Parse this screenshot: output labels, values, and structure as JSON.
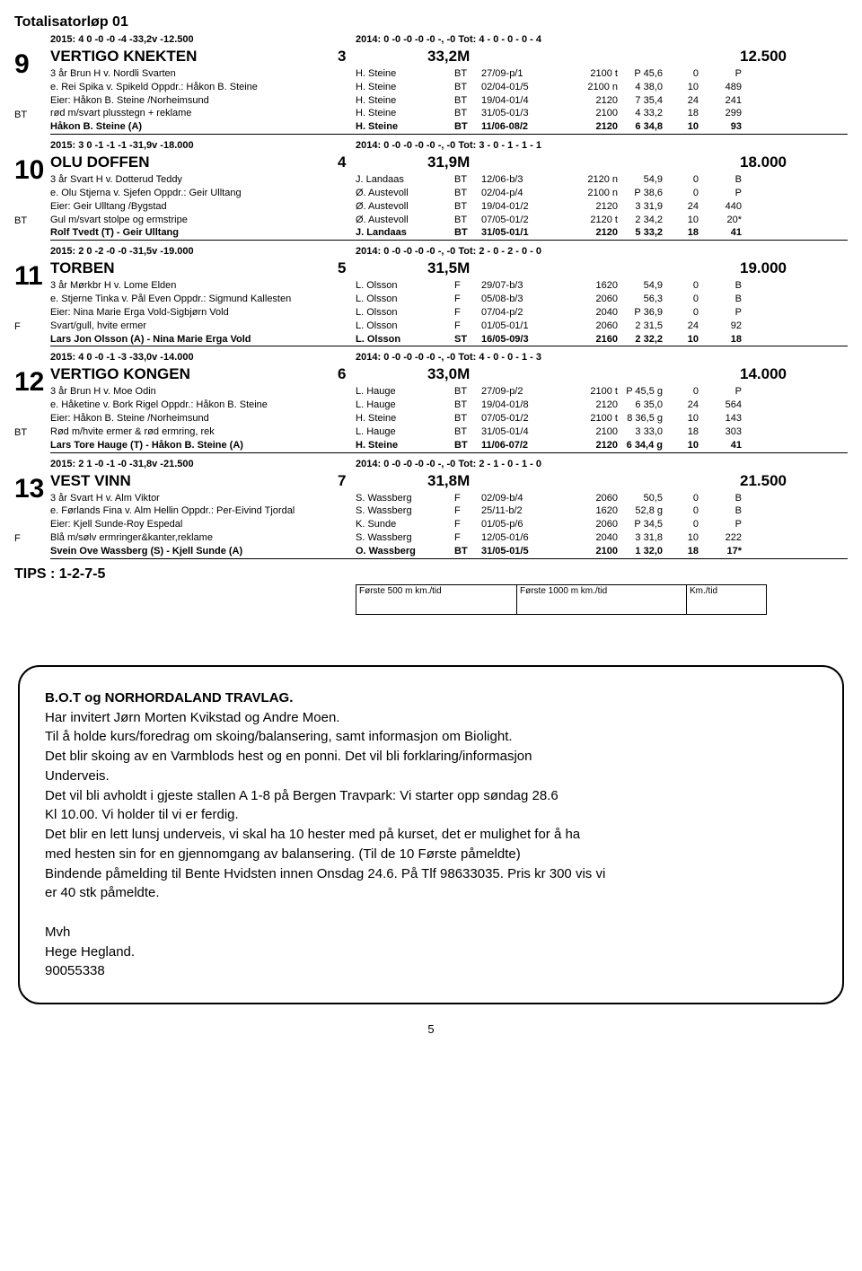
{
  "title": "Totalisatorløp 01",
  "horses": [
    {
      "bigNum": "9",
      "btBottom": "BT",
      "yearLeft": "2015:   4    0   -0   -0   -4  -33,2v  -12.500",
      "yearRight": "2014:   0   -0   -0   -0   -0          -,          -0     Tot: 4 - 0 - 0 - 0 - 4",
      "name": "VERTIGO KNEKTEN",
      "num": "3",
      "dist": "33,2M",
      "odds": "12.500",
      "lines": [
        {
          "desc": "3 år Brun H v. Nordli Svarten",
          "driver": "H. Steine",
          "code": "BT",
          "date": "27/09-p/1",
          "dist": "2100 t",
          "v1": "P 45,6",
          "v2": "0",
          "v3": "P"
        },
        {
          "desc": "e. Rei Spika v. Spikeld  Oppdr.: Håkon B. Steine",
          "driver": "H. Steine",
          "code": "BT",
          "date": "02/04-01/5",
          "dist": "2100 n",
          "v1": "4 38,0",
          "v2": "10",
          "v3": "489"
        },
        {
          "desc": "Eier: Håkon B. Steine /Norheimsund",
          "driver": "H. Steine",
          "code": "BT",
          "date": "19/04-01/4",
          "dist": "2120",
          "v1": "7 35,4",
          "v2": "24",
          "v3": "241"
        },
        {
          "desc": "rød m/svart plusstegn + reklame",
          "driver": "H. Steine",
          "code": "BT",
          "date": "31/05-01/3",
          "dist": "2100",
          "v1": "4 33,2",
          "v2": "18",
          "v3": "299"
        },
        {
          "desc": "Håkon B. Steine (A)",
          "driver": "H. Steine",
          "code": "BT",
          "date": "11/06-08/2",
          "dist": "2120",
          "v1": "6 34,8",
          "v2": "10",
          "v3": "93",
          "bold": true,
          "underline": true
        }
      ]
    },
    {
      "bigNum": "10",
      "btBottom": "BT",
      "yearLeft": "2015:   3    0   -1   -1   -1  -31,9v  -18.000",
      "yearRight": "2014:   0   -0   -0   -0   -0          -,          -0     Tot: 3 - 0 - 1 - 1 - 1",
      "name": "OLU DOFFEN",
      "num": "4",
      "dist": "31,9M",
      "odds": "18.000",
      "lines": [
        {
          "desc": "3 år Svart H v. Dotterud Teddy",
          "driver": "J. Landaas",
          "code": "BT",
          "date": "12/06-b/3",
          "dist": "2120 n",
          "v1": "54,9",
          "v2": "0",
          "v3": "B"
        },
        {
          "desc": "e. Olu Stjerna v. Sjefen  Oppdr.: Geir Ulltang",
          "driver": "Ø. Austevoll",
          "code": "BT",
          "date": "02/04-p/4",
          "dist": "2100 n",
          "v1": "P 38,6",
          "v2": "0",
          "v3": "P"
        },
        {
          "desc": "Eier: Geir Ulltang /Bygstad",
          "driver": "Ø. Austevoll",
          "code": "BT",
          "date": "19/04-01/2",
          "dist": "2120",
          "v1": "3 31,9",
          "v2": "24",
          "v3": "440"
        },
        {
          "desc": "Gul m/svart stolpe og ermstripe",
          "driver": "Ø. Austevoll",
          "code": "BT",
          "date": "07/05-01/2",
          "dist": "2120 t",
          "v1": "2 34,2",
          "v2": "10",
          "v3": "20*"
        },
        {
          "desc": "Rolf Tvedt (T) - Geir Ulltang",
          "driver": "J. Landaas",
          "code": "BT",
          "date": "31/05-01/1",
          "dist": "2120",
          "v1": "5 33,2",
          "v2": "18",
          "v3": "41",
          "bold": true,
          "underline": true
        }
      ]
    },
    {
      "bigNum": "11",
      "btBottom": "F",
      "yearLeft": "2015:   2    0   -2   -0   -0  -31,5v  -19.000",
      "yearRight": "2014:   0   -0   -0   -0   -0          -,          -0     Tot: 2 - 0 - 2 - 0 - 0",
      "name": "TORBEN",
      "num": "5",
      "dist": "31,5M",
      "odds": "19.000",
      "lines": [
        {
          "desc": "3 år Mørkbr H v. Lome Elden",
          "driver": "L. Olsson",
          "code": "F",
          "date": "29/07-b/3",
          "dist": "1620",
          "v1": "54,9",
          "v2": "0",
          "v3": "B"
        },
        {
          "desc": "e. Stjerne Tinka v. Pål Even  Oppdr.: Sigmund Kallesten",
          "driver": "L. Olsson",
          "code": "F",
          "date": "05/08-b/3",
          "dist": "2060",
          "v1": "56,3",
          "v2": "0",
          "v3": "B"
        },
        {
          "desc": "Eier: Nina Marie Erga Vold-Sigbjørn Vold",
          "driver": "L. Olsson",
          "code": "F",
          "date": "07/04-p/2",
          "dist": "2040",
          "v1": "P 36,9",
          "v2": "0",
          "v3": "P"
        },
        {
          "desc": "Svart/gull, hvite ermer",
          "driver": "L. Olsson",
          "code": "F",
          "date": "01/05-01/1",
          "dist": "2060",
          "v1": "2 31,5",
          "v2": "24",
          "v3": "92"
        },
        {
          "desc": "Lars Jon Olsson (A) - Nina Marie Erga Vold",
          "driver": "L. Olsson",
          "code": "ST",
          "date": "16/05-09/3",
          "dist": "2160",
          "v1": "2 32,2",
          "v2": "10",
          "v3": "18",
          "bold": true,
          "underline": true
        }
      ]
    },
    {
      "bigNum": "12",
      "btBottom": "BT",
      "yearLeft": "2015:   4    0   -0   -1   -3  -33,0v  -14.000",
      "yearRight": "2014:   0   -0   -0   -0   -0          -,          -0     Tot: 4 - 0 - 0 - 1 - 3",
      "name": "VERTIGO KONGEN",
      "num": "6",
      "dist": "33,0M",
      "odds": "14.000",
      "lines": [
        {
          "desc": "3 år Brun H v. Moe Odin",
          "driver": "L. Hauge",
          "code": "BT",
          "date": "27/09-p/2",
          "dist": "2100 t",
          "v1": "P 45,5 g",
          "v2": "0",
          "v3": "P"
        },
        {
          "desc": "e. Håketine v. Bork Rigel  Oppdr.: Håkon B. Steine",
          "driver": "L. Hauge",
          "code": "BT",
          "date": "19/04-01/8",
          "dist": "2120",
          "v1": "6 35,0",
          "v2": "24",
          "v3": "564"
        },
        {
          "desc": "Eier: Håkon B. Steine /Norheimsund",
          "driver": "H. Steine",
          "code": "BT",
          "date": "07/05-01/2",
          "dist": "2100 t",
          "v1": "8 36,5 g",
          "v2": "10",
          "v3": "143"
        },
        {
          "desc": "Rød m/hvite ermer & rød ermring, rek",
          "driver": "L. Hauge",
          "code": "BT",
          "date": "31/05-01/4",
          "dist": "2100",
          "v1": "3 33,0",
          "v2": "18",
          "v3": "303"
        },
        {
          "desc": "Lars Tore Hauge (T) - Håkon B. Steine (A)",
          "driver": "H. Steine",
          "code": "BT",
          "date": "11/06-07/2",
          "dist": "2120",
          "v1": "6 34,4 g",
          "v2": "10",
          "v3": "41",
          "bold": true,
          "underline": true
        }
      ]
    },
    {
      "bigNum": "13",
      "btBottom": "F",
      "yearLeft": "2015:   2    1   -0   -1   -0  -31,8v  -21.500",
      "yearRight": "2014:   0   -0   -0   -0   -0          -,          -0     Tot: 2 - 1 - 0 - 1 - 0",
      "name": "VEST VINN",
      "num": "7",
      "dist": "31,8M",
      "odds": "21.500",
      "lines": [
        {
          "desc": "3 år Svart H v. Alm Viktor",
          "driver": "S. Wassberg",
          "code": "F",
          "date": "02/09-b/4",
          "dist": "2060",
          "v1": "50,5",
          "v2": "0",
          "v3": "B"
        },
        {
          "desc": "e. Førlands Fina v. Alm Hellin  Oppdr.: Per-Eivind Tjordal",
          "driver": "S. Wassberg",
          "code": "F",
          "date": "25/11-b/2",
          "dist": "1620",
          "v1": "52,8 g",
          "v2": "0",
          "v3": "B"
        },
        {
          "desc": "Eier: Kjell Sunde-Roy Espedal",
          "driver": "K. Sunde",
          "code": "F",
          "date": "01/05-p/6",
          "dist": "2060",
          "v1": "P 34,5",
          "v2": "0",
          "v3": "P"
        },
        {
          "desc": "Blå m/sølv ermringer&kanter,reklame",
          "driver": "S. Wassberg",
          "code": "F",
          "date": "12/05-01/6",
          "dist": "2040",
          "v1": "3 31,8",
          "v2": "10",
          "v3": "222"
        },
        {
          "desc": "Svein Ove Wassberg (S) - Kjell Sunde (A)",
          "driver": "O. Wassberg",
          "code": "BT",
          "date": "31/05-01/5",
          "dist": "2100",
          "v1": "1 32,0",
          "v2": "18",
          "v3": "17*",
          "bold": true,
          "underline": true
        }
      ]
    }
  ],
  "tips": "TIPS : 1-2-7-5",
  "footerLabels": {
    "l1": "Første 500 m km./tid",
    "l2": "Første 1000 m km./tid",
    "l3": "Km./tid"
  },
  "announce": {
    "heading": "B.O.T og NORHORDALAND TRAVLAG.",
    "body": [
      "Har invitert Jørn Morten Kvikstad og Andre Moen.",
      "Til å holde kurs/foredrag om skoing/balansering, samt informasjon om Biolight.",
      "Det blir skoing av en Varmblods hest og en ponni. Det vil bli forklaring/informasjon",
      "Underveis.",
      "Det vil bli avholdt i gjeste stallen A 1-8 på Bergen Travpark: Vi starter opp søndag 28.6",
      "Kl 10.00. Vi holder til vi er ferdig.",
      "Det blir en lett lunsj underveis, vi skal ha 10 hester med på kurset, det er mulighet for å ha",
      "med hesten sin for en gjennomgang av balansering. (Til de 10 Første påmeldte)",
      "Bindende påmelding til Bente Hvidsten innen Onsdag 24.6. På Tlf 98633035. Pris kr 300 vis vi",
      "er 40 stk påmeldte."
    ],
    "sig1": "Mvh",
    "sig2": "Hege Hegland.",
    "sig3": "90055338"
  },
  "pageNum": "5"
}
